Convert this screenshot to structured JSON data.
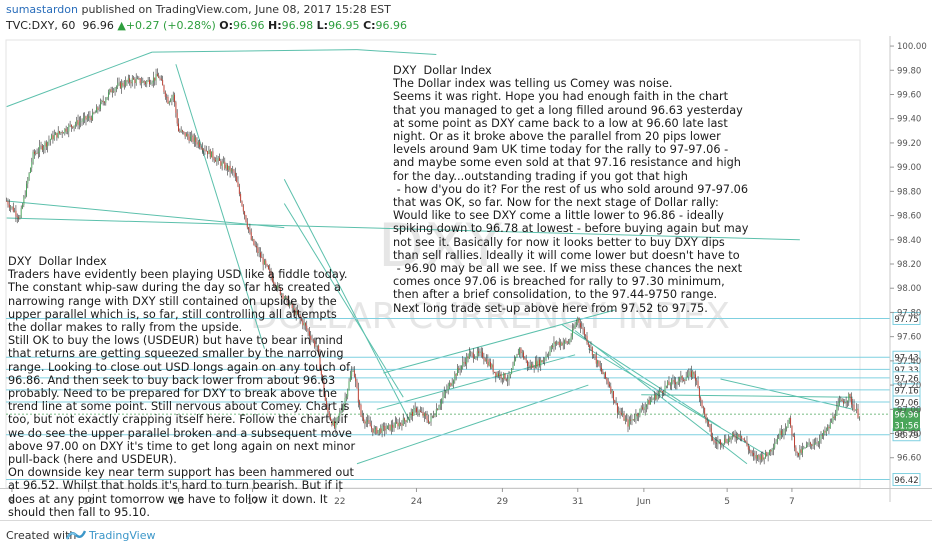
{
  "header": {
    "user": "sumastardon",
    "published": "published on TradingView.com, June 08, 2017 15:28 EST",
    "symbol": "TVC:DXY, 60",
    "last": "96.96",
    "change": "+0.27 (+0.28%)",
    "open_label": "O:",
    "open": "96.96",
    "high_label": "H:",
    "high": "96.98",
    "low_label": "L:",
    "low": "96.95",
    "close_label": "C:",
    "close": "96.96",
    "up_arrow": "▲"
  },
  "watermark": {
    "ticker": "DXY",
    "name": "DOLLAR CURRENCY INDEX"
  },
  "notes": {
    "right": [
      "DXY  Dollar Index",
      "The Dollar index was telling us Comey was noise.",
      "Seems it was right. Hope you had enough faith in the chart",
      "that you managed to get a long filled around 96.63 yesterday",
      "at some point as DXY came back to a low at 96.60 late last",
      "night. Or as it broke above the parallel from 20 pips lower",
      "levels around 9am UK time today for the rally to 97-97.06 -",
      "and maybe some even sold at that 97.16 resistance and high",
      "for the day...outstanding trading if you got that high",
      " - how d'you do it? For the rest of us who sold around 97-97.06",
      "that was OK, so far. Now for the next stage of Dollar rally:",
      "Would like to see DXY come a little lower to 96.86 - ideally",
      "spiking down to 96.78 at lowest - before buying again but may",
      "not see it. Basically for now it looks better to buy DXY dips",
      "than sell rallies. Ideally it will come lower but doesn't have to",
      " - 96.90 may be all we see. If we miss these chances the next",
      "comes once 97.06 is breached for rally to 97.30 minimum,",
      "then after a brief consolidation, to the 97.44-9750 range.",
      "Next long trade set-up above here from 97.52 to 97.75."
    ],
    "left": [
      "DXY  Dollar Index",
      "Traders have evidently been playing USD like a fiddle today.",
      "The constant whip-saw during the day so far has created a",
      "narrowing range with DXY still contained on upside by the",
      "upper parallel which is, so far, still controlling all attempts",
      "the dollar makes to rally from the upside.",
      "Still OK to buy the lows (USDEUR) but have to bear in mind",
      "that returns are getting squeezed smaller by the narrowing",
      "range. Looking to close out USD longs again on any touch of",
      "96.86. And then seek to buy back lower from about 96.63",
      "probably. Need to be prepared for DXY to break above the",
      "trend line at some point. Still nervous about Comey. Chart is",
      "too, but not exactly crapping itself here. Follow the chart...if",
      "we do see the upper parallel broken and a subsequent move",
      "above 97.00 on DXY it's time to get long again on next minor",
      "pull-back (here and USDEUR).",
      "On downside key near term support has been hammered out",
      "at 96.52. Whilst that holds it's hard to turn bearish. But if it",
      "does at any point tomorrow we have to follow it down. It",
      "should then fall to 95.10."
    ]
  },
  "chart_data": {
    "type": "candlestick",
    "interval": "60",
    "ylim": [
      96.35,
      100.05
    ],
    "y_ticks": [
      96.6,
      96.8,
      97.0,
      97.2,
      97.4,
      97.6,
      97.8,
      98.0,
      98.2,
      98.4,
      98.6,
      98.8,
      99.0,
      99.2,
      99.4,
      99.6,
      99.8,
      100.0
    ],
    "y_tick_labels": [
      "96.60",
      "96.80",
      "97.00",
      "97.20",
      "97.40",
      "97.60",
      "97.80",
      "98.00",
      "98.20",
      "98.40",
      "98.60",
      "98.80",
      "99.00",
      "99.20",
      "99.40",
      "99.60",
      "99.80",
      "100.00"
    ],
    "x_tick_labels": [
      "8",
      "10",
      "15",
      "17",
      "22",
      "24",
      "29",
      "31",
      "Jun",
      "5",
      "7"
    ],
    "x_tick_index": [
      4,
      62,
      130,
      186,
      252,
      310,
      375,
      432,
      482,
      545,
      594
    ],
    "price_levels": [
      {
        "label": "97.75",
        "value": 97.75
      },
      {
        "label": "97.43",
        "value": 97.43
      },
      {
        "label": "97.33",
        "value": 97.33
      },
      {
        "label": "97.26",
        "value": 97.26
      },
      {
        "label": "97.16",
        "value": 97.16
      },
      {
        "label": "97.06",
        "value": 97.06
      },
      {
        "label": "96.79",
        "value": 96.79
      },
      {
        "label": "96.42",
        "value": 96.42
      }
    ],
    "current_price": {
      "label": "96.96",
      "value": 96.96
    },
    "countdown": {
      "label": "31:56",
      "value": 96.87
    },
    "path_anchors": [
      [
        0,
        98.72
      ],
      [
        10,
        98.58
      ],
      [
        20,
        99.1
      ],
      [
        35,
        99.25
      ],
      [
        50,
        99.35
      ],
      [
        65,
        99.42
      ],
      [
        80,
        99.65
      ],
      [
        95,
        99.72
      ],
      [
        105,
        99.7
      ],
      [
        115,
        99.75
      ],
      [
        122,
        99.55
      ],
      [
        126,
        99.6
      ],
      [
        130,
        99.3
      ],
      [
        145,
        99.2
      ],
      [
        160,
        99.05
      ],
      [
        172,
        98.95
      ],
      [
        185,
        98.4
      ],
      [
        195,
        98.2
      ],
      [
        205,
        98.0
      ],
      [
        215,
        97.85
      ],
      [
        225,
        97.7
      ],
      [
        235,
        97.5
      ],
      [
        242,
        97.0
      ],
      [
        248,
        96.85
      ],
      [
        255,
        97.05
      ],
      [
        262,
        97.35
      ],
      [
        268,
        96.95
      ],
      [
        278,
        96.82
      ],
      [
        290,
        96.85
      ],
      [
        300,
        96.9
      ],
      [
        310,
        97.0
      ],
      [
        320,
        96.9
      ],
      [
        330,
        97.1
      ],
      [
        340,
        97.3
      ],
      [
        350,
        97.45
      ],
      [
        360,
        97.45
      ],
      [
        370,
        97.3
      ],
      [
        380,
        97.25
      ],
      [
        388,
        97.5
      ],
      [
        395,
        97.35
      ],
      [
        405,
        97.4
      ],
      [
        415,
        97.55
      ],
      [
        425,
        97.55
      ],
      [
        432,
        97.75
      ],
      [
        440,
        97.55
      ],
      [
        448,
        97.35
      ],
      [
        456,
        97.2
      ],
      [
        462,
        97.0
      ],
      [
        470,
        96.88
      ],
      [
        480,
        97.0
      ],
      [
        490,
        97.1
      ],
      [
        500,
        97.2
      ],
      [
        510,
        97.25
      ],
      [
        520,
        97.3
      ],
      [
        528,
        96.95
      ],
      [
        535,
        96.72
      ],
      [
        545,
        96.75
      ],
      [
        555,
        96.8
      ],
      [
        565,
        96.6
      ],
      [
        575,
        96.62
      ],
      [
        585,
        96.8
      ],
      [
        592,
        96.9
      ],
      [
        598,
        96.62
      ],
      [
        606,
        96.7
      ],
      [
        615,
        96.75
      ],
      [
        622,
        96.85
      ],
      [
        630,
        97.05
      ],
      [
        637,
        97.1
      ],
      [
        644,
        96.96
      ]
    ],
    "trend_lines": [
      [
        0,
        99.5,
        110,
        99.95
      ],
      [
        110,
        99.95,
        265,
        99.97
      ],
      [
        265,
        99.97,
        325,
        99.93
      ],
      [
        0,
        98.58,
        600,
        98.4
      ],
      [
        0,
        98.72,
        210,
        98.5
      ],
      [
        128,
        99.85,
        195,
        97.5
      ],
      [
        210,
        98.9,
        305,
        96.9
      ],
      [
        210,
        98.7,
        300,
        97.1
      ],
      [
        285,
        97.3,
        460,
        97.82
      ],
      [
        280,
        97.0,
        430,
        97.45
      ],
      [
        265,
        96.55,
        440,
        97.2
      ],
      [
        420,
        97.7,
        540,
        96.85
      ],
      [
        430,
        97.65,
        560,
        96.55
      ],
      [
        440,
        97.5,
        575,
        96.62
      ],
      [
        540,
        97.25,
        640,
        97.0
      ],
      [
        480,
        97.12,
        640,
        97.1
      ]
    ],
    "n_bars": 646
  }
}
